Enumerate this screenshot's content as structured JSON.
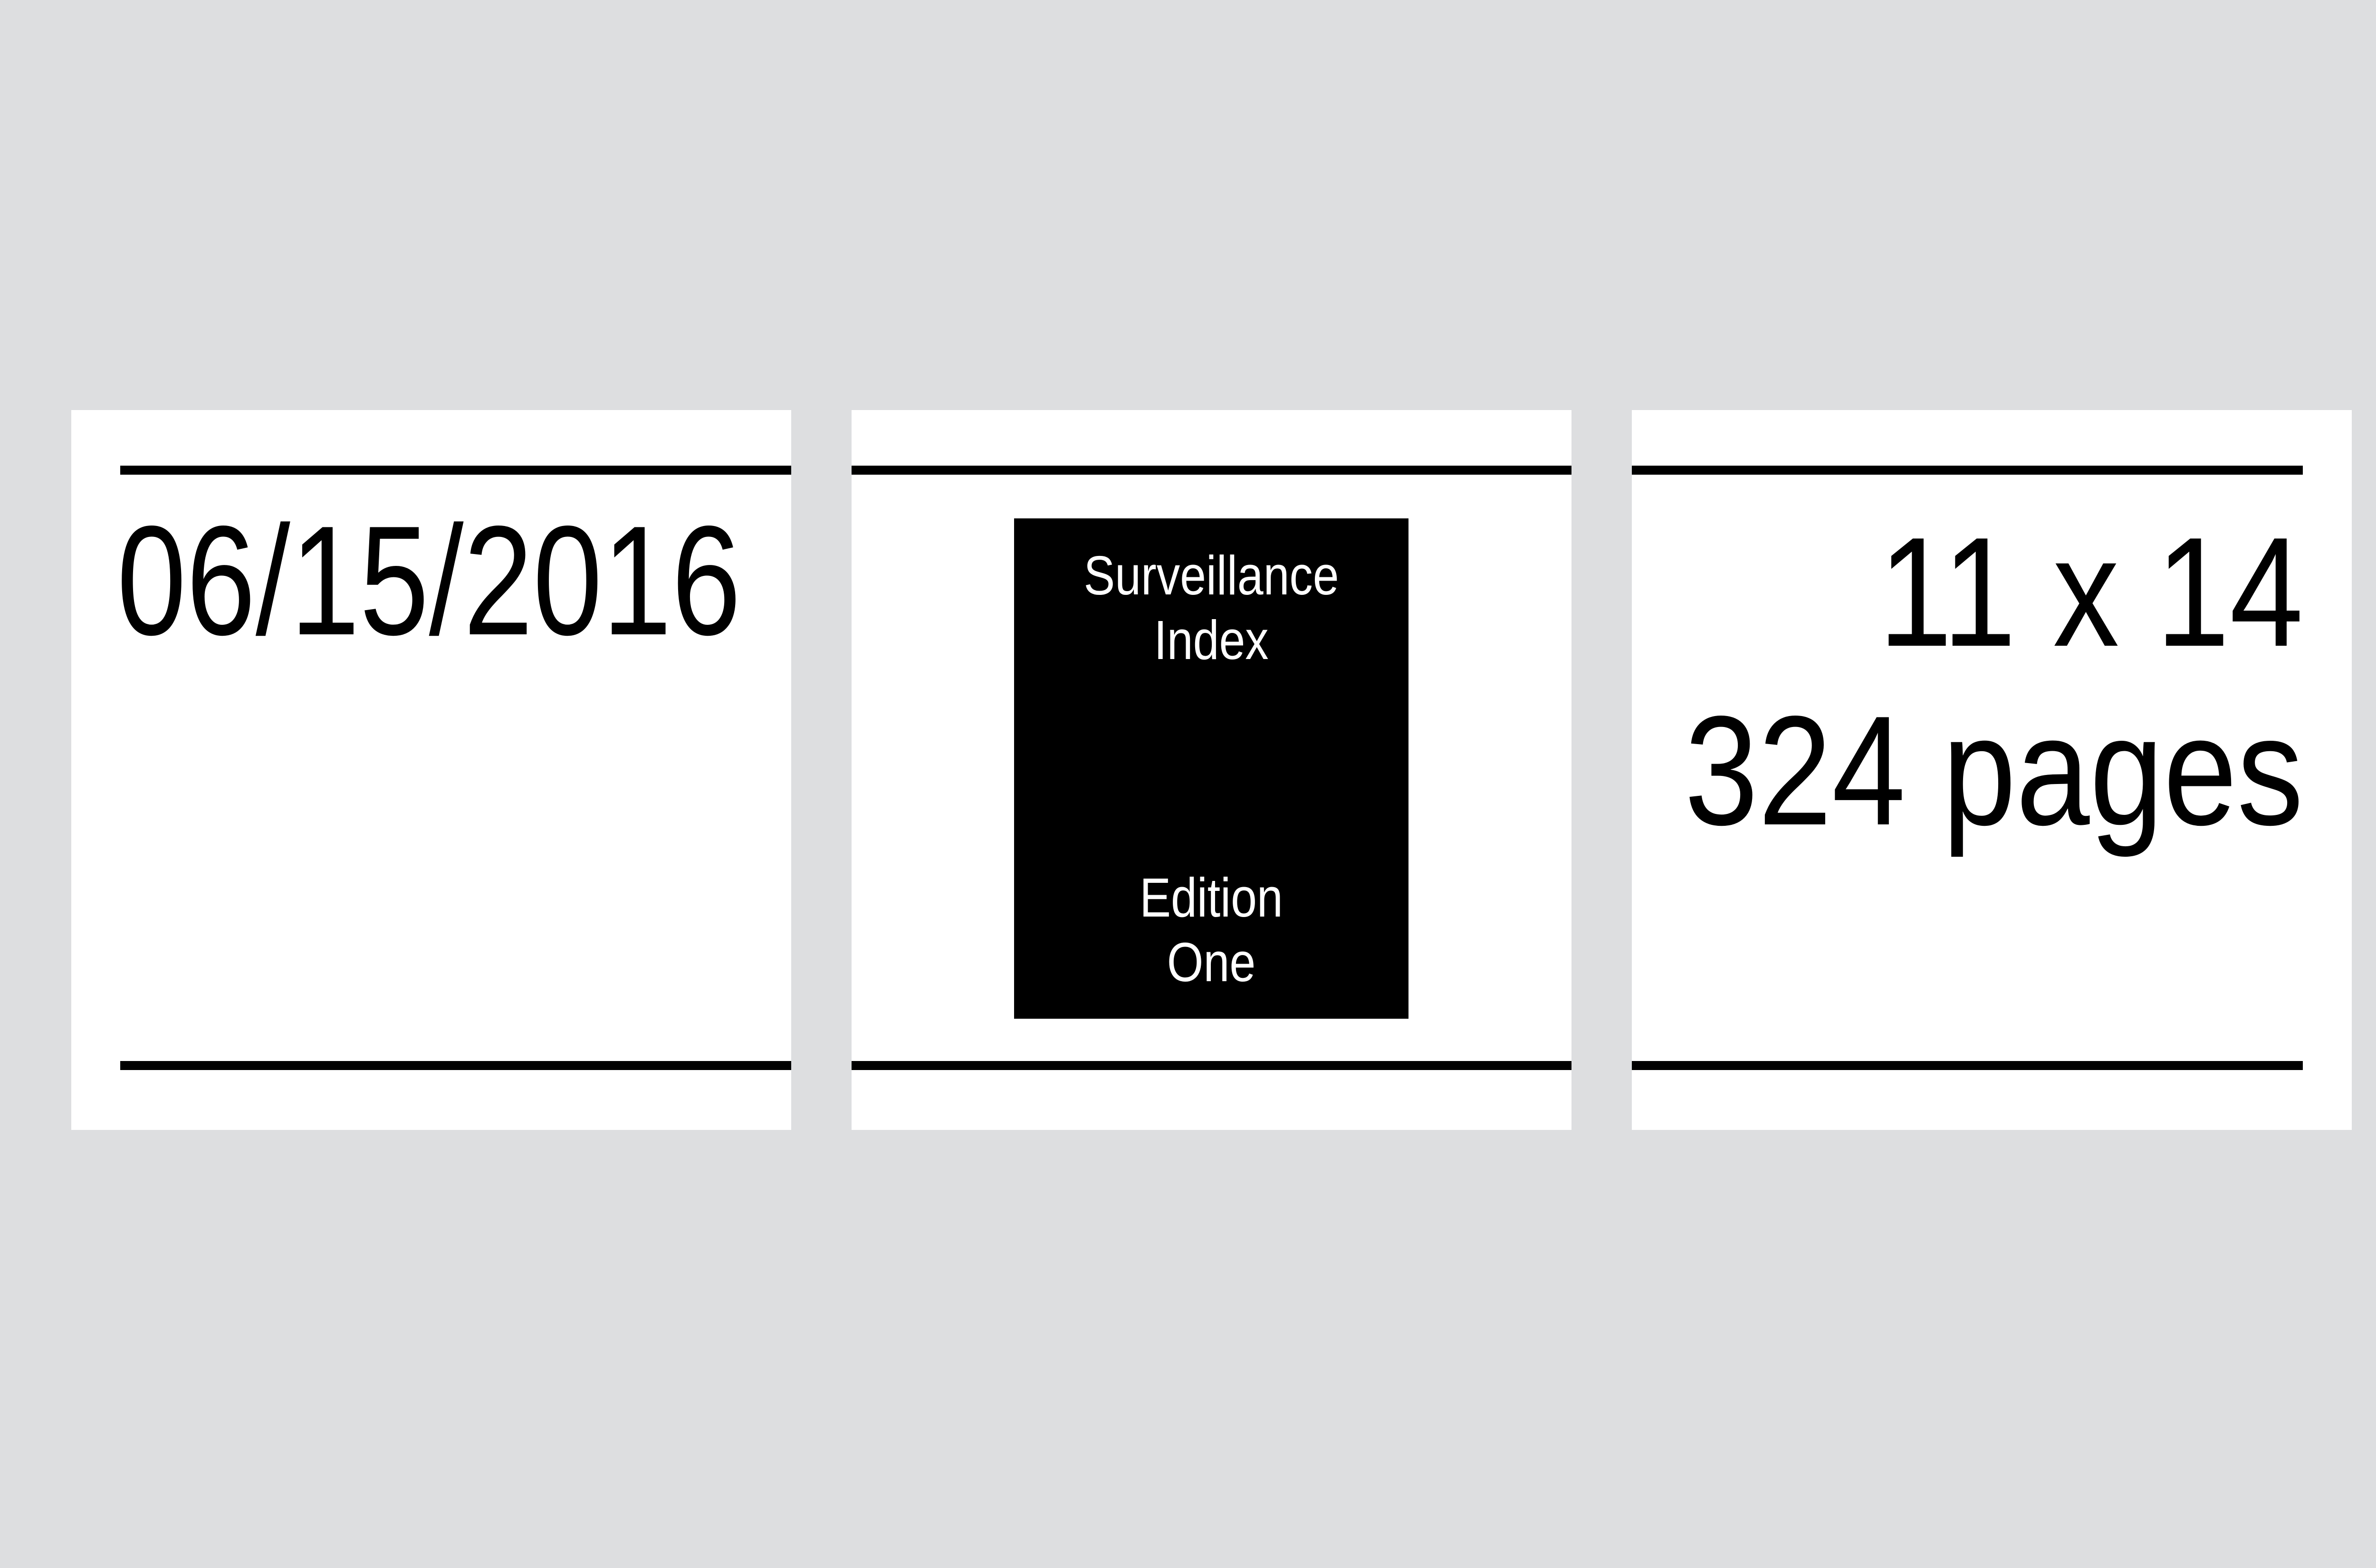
{
  "panels": {
    "left": {
      "date": "06/15/2016"
    },
    "center": {
      "cover": {
        "title_line1": "Surveillance",
        "title_line2": "Index",
        "edition_line1": "Edition",
        "edition_line2": "One"
      }
    },
    "right": {
      "size": "11 x 14",
      "pages": "324 pages"
    }
  },
  "colors": {
    "background": "#dddee0",
    "panel": "#ffffff",
    "rule": "#000000",
    "cover": "#000000",
    "cover_text": "#ffffff"
  }
}
